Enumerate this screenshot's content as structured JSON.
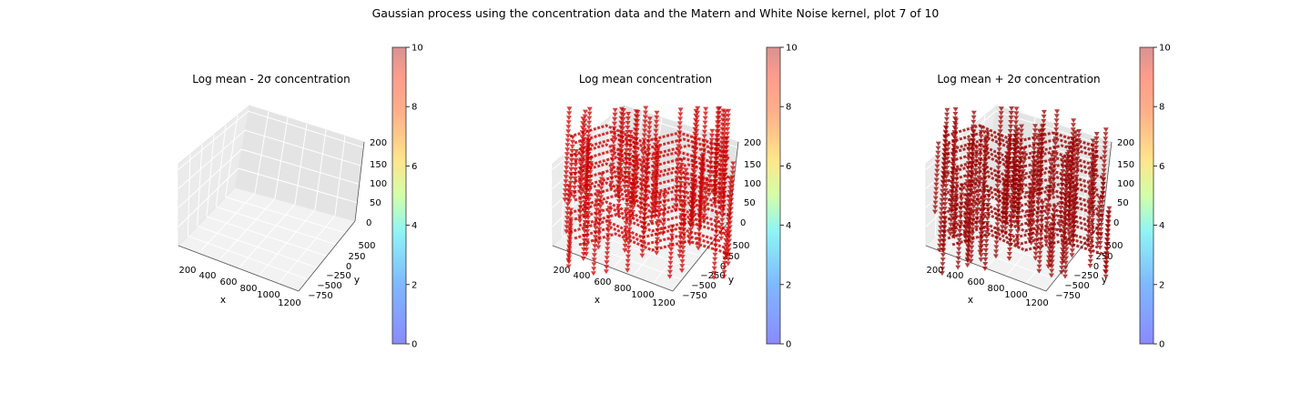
{
  "figure": {
    "title": "Gaussian process using the  concentration data and the Matern and White Noise kernel, plot 7 of 10"
  },
  "colorbar": {
    "ticks": [
      "0",
      "2",
      "4",
      "6",
      "8",
      "10"
    ],
    "range": [
      0,
      10
    ],
    "colormap": "jet",
    "colors": [
      "#8080ff",
      "#7fd4ff",
      "#9cffee",
      "#e9ffa8",
      "#ffd78a",
      "#ff9f8c",
      "#dd8888"
    ]
  },
  "axes3d": {
    "x_ticks": [
      "200",
      "400",
      "600",
      "800",
      "1000",
      "1200"
    ],
    "y_ticks": [
      "−750",
      "−500",
      "−250",
      "0",
      "250",
      "500"
    ],
    "z_ticks": [
      "0",
      "50",
      "100",
      "150",
      "200"
    ],
    "xlabel": "x",
    "ylabel": "y"
  },
  "chart_data": [
    {
      "type": "scatter",
      "projection": "3d",
      "title": "Log mean - 2σ concentration",
      "xlabel": "x",
      "ylabel": "y",
      "xlim": [
        100,
        1250
      ],
      "ylim": [
        -900,
        700
      ],
      "zlim": [
        0,
        200
      ],
      "series": [],
      "colorbar": {
        "range": [
          0,
          10
        ]
      }
    },
    {
      "type": "scatter",
      "projection": "3d",
      "title": "Log mean concentration",
      "xlabel": "x",
      "ylabel": "y",
      "xlim": [
        100,
        1250
      ],
      "ylim": [
        -900,
        700
      ],
      "zlim": [
        0,
        200
      ],
      "marker_color": "#cc0000",
      "series": [],
      "colorbar": {
        "range": [
          0,
          10
        ]
      }
    },
    {
      "type": "scatter",
      "projection": "3d",
      "title": "Log mean + 2σ concentration",
      "xlabel": "x",
      "ylabel": "y",
      "xlim": [
        100,
        1250
      ],
      "ylim": [
        -900,
        700
      ],
      "zlim": [
        0,
        200
      ],
      "marker_color": "#990000",
      "series": [],
      "colorbar": {
        "range": [
          0,
          10
        ]
      }
    }
  ]
}
